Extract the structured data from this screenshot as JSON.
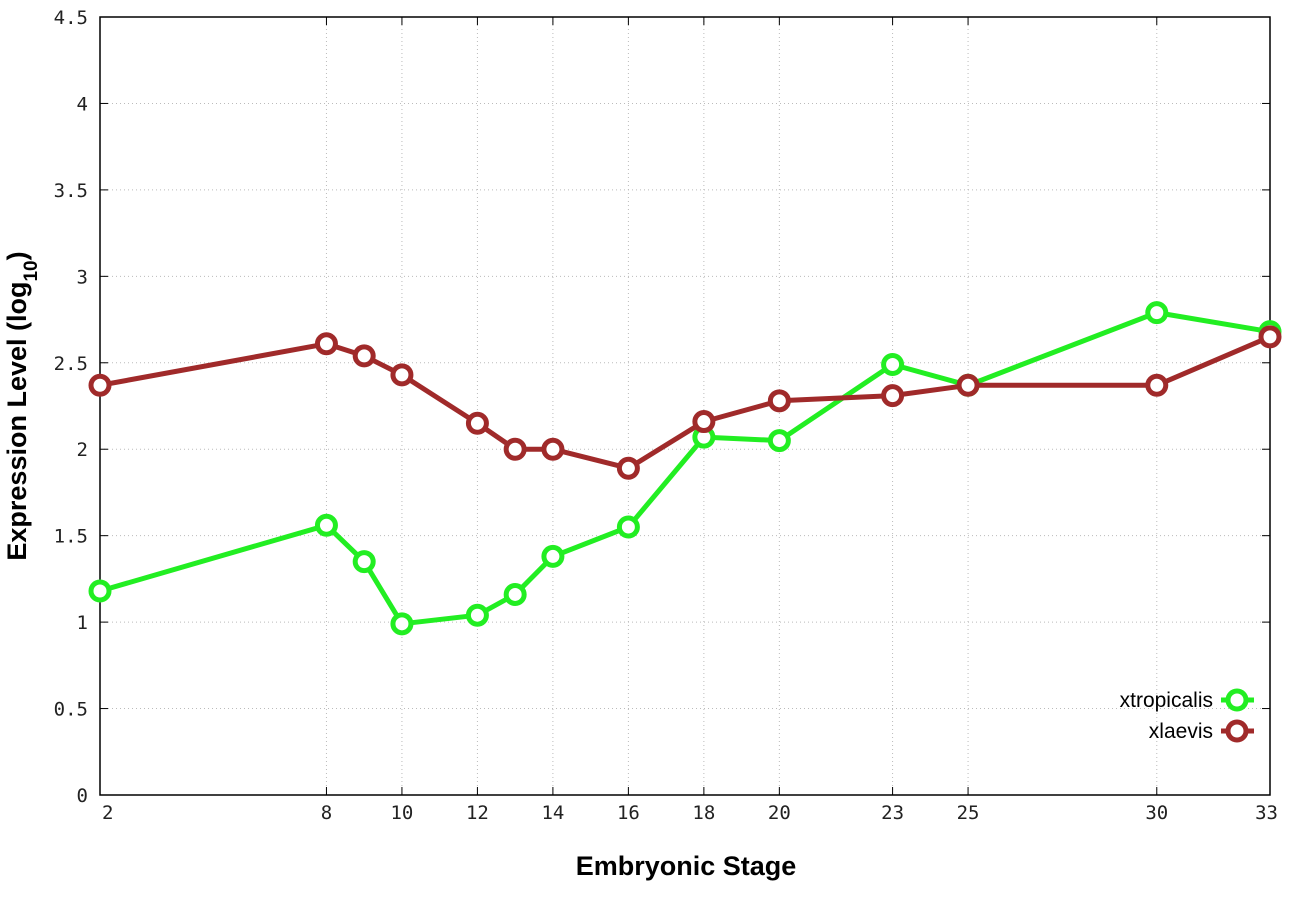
{
  "chart_data": {
    "type": "line",
    "title": "",
    "xlabel": "Embryonic Stage",
    "ylabel_main": "Expression Level (log",
    "ylabel_sub": "10",
    "ylabel_close": ")",
    "xlim": [
      2,
      33
    ],
    "ylim": [
      0,
      4.5
    ],
    "x_ticks": [
      2,
      8,
      10,
      12,
      14,
      16,
      18,
      20,
      23,
      25,
      30,
      33
    ],
    "y_ticks": [
      0,
      0.5,
      1,
      1.5,
      2,
      2.5,
      3,
      3.5,
      4,
      4.5
    ],
    "y_tick_labels": [
      "0",
      "0.5",
      "1",
      "1.5",
      "2",
      "2.5",
      "3",
      "3.5",
      "4",
      "4.5"
    ],
    "grid": true,
    "legend_position": "bottom-right",
    "series": [
      {
        "name": "xtropicalis",
        "color": "#22ee22",
        "x": [
          2,
          8,
          9,
          10,
          12,
          13,
          14,
          16,
          18,
          20,
          23,
          25,
          30,
          33
        ],
        "y": [
          1.18,
          1.56,
          1.35,
          0.99,
          1.04,
          1.16,
          1.38,
          1.55,
          2.07,
          2.05,
          2.49,
          2.37,
          2.79,
          2.68
        ]
      },
      {
        "name": "xlaevis",
        "color": "#a02a2a",
        "x": [
          2,
          8,
          9,
          10,
          12,
          13,
          14,
          16,
          18,
          20,
          23,
          25,
          30,
          33
        ],
        "y": [
          2.37,
          2.61,
          2.54,
          2.43,
          2.15,
          2.0,
          2.0,
          1.89,
          2.16,
          2.28,
          2.31,
          2.37,
          2.37,
          2.65
        ]
      }
    ]
  }
}
